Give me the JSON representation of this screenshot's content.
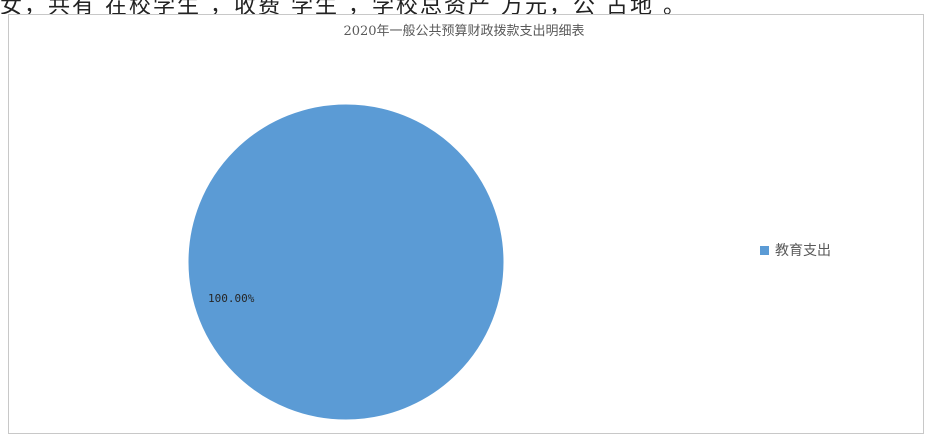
{
  "header_strip_text": "女，共有 在校学生 ，收费 学生 ，学校总资产 万元，公 占地 。",
  "chart_data": {
    "type": "pie",
    "title": "2020年一般公共预算财政拨款支出明细表",
    "slices": [
      {
        "label": "教育支出",
        "value": 100.0,
        "data_label": "100.00%",
        "color": "#5b9bd5"
      }
    ],
    "legend_position": "right"
  }
}
